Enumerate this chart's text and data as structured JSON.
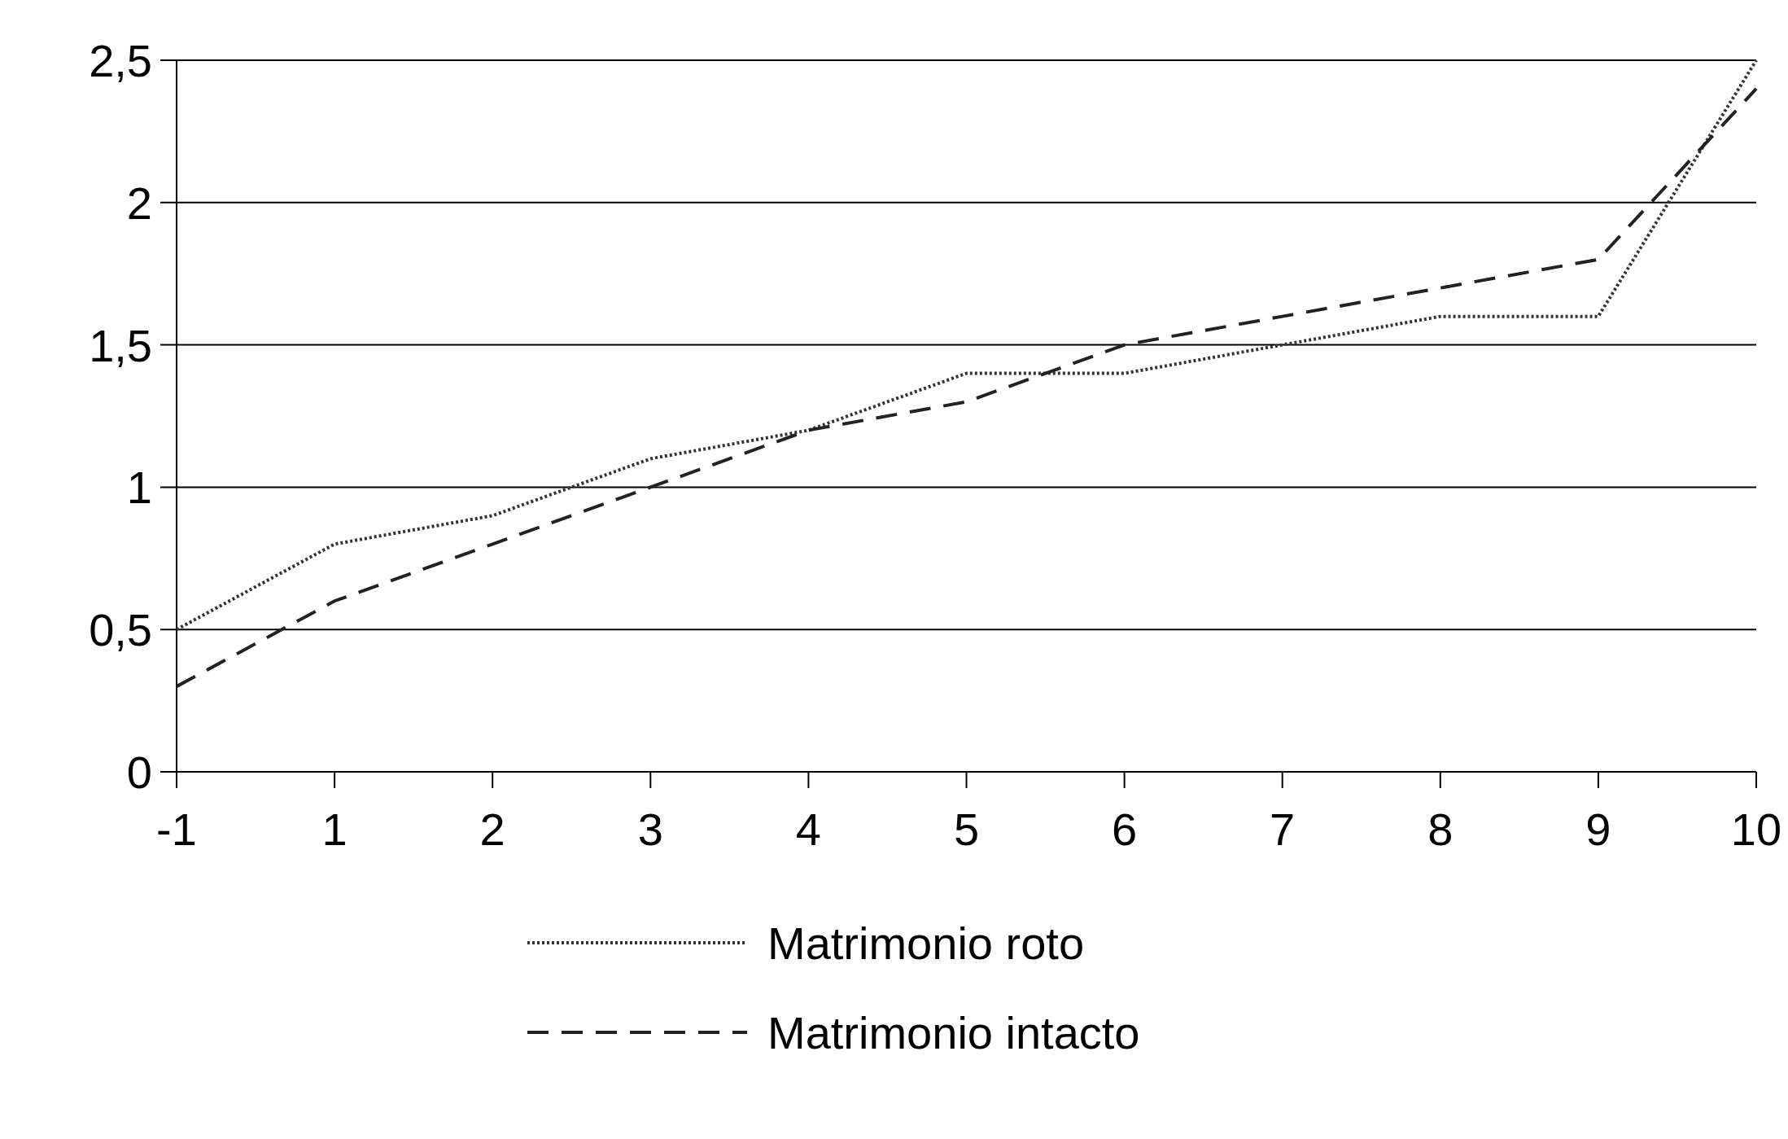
{
  "chart_data": {
    "type": "line",
    "categories": [
      "-1",
      "1",
      "2",
      "3",
      "4",
      "5",
      "6",
      "7",
      "8",
      "9",
      "10"
    ],
    "series": [
      {
        "name": "Matrimonio roto",
        "color": "#333333",
        "line_style": "dotted",
        "values": [
          0.5,
          0.8,
          0.9,
          1.1,
          1.2,
          1.4,
          1.4,
          1.5,
          1.6,
          1.6,
          2.5
        ]
      },
      {
        "name": "Matrimonio intacto",
        "color": "#222222",
        "line_style": "dashed",
        "values": [
          0.3,
          0.6,
          0.8,
          1.0,
          1.2,
          1.3,
          1.5,
          1.6,
          1.7,
          1.8,
          2.4
        ]
      }
    ],
    "ylim": [
      0,
      2.5
    ],
    "yticks": [
      0,
      {
        "value": 0.5,
        "label": "0,5"
      },
      1,
      {
        "value": 1.5,
        "label": "1,5"
      },
      2,
      {
        "value": 2.5,
        "label": "2,5"
      }
    ],
    "grid": "y",
    "legend": "bottom"
  }
}
